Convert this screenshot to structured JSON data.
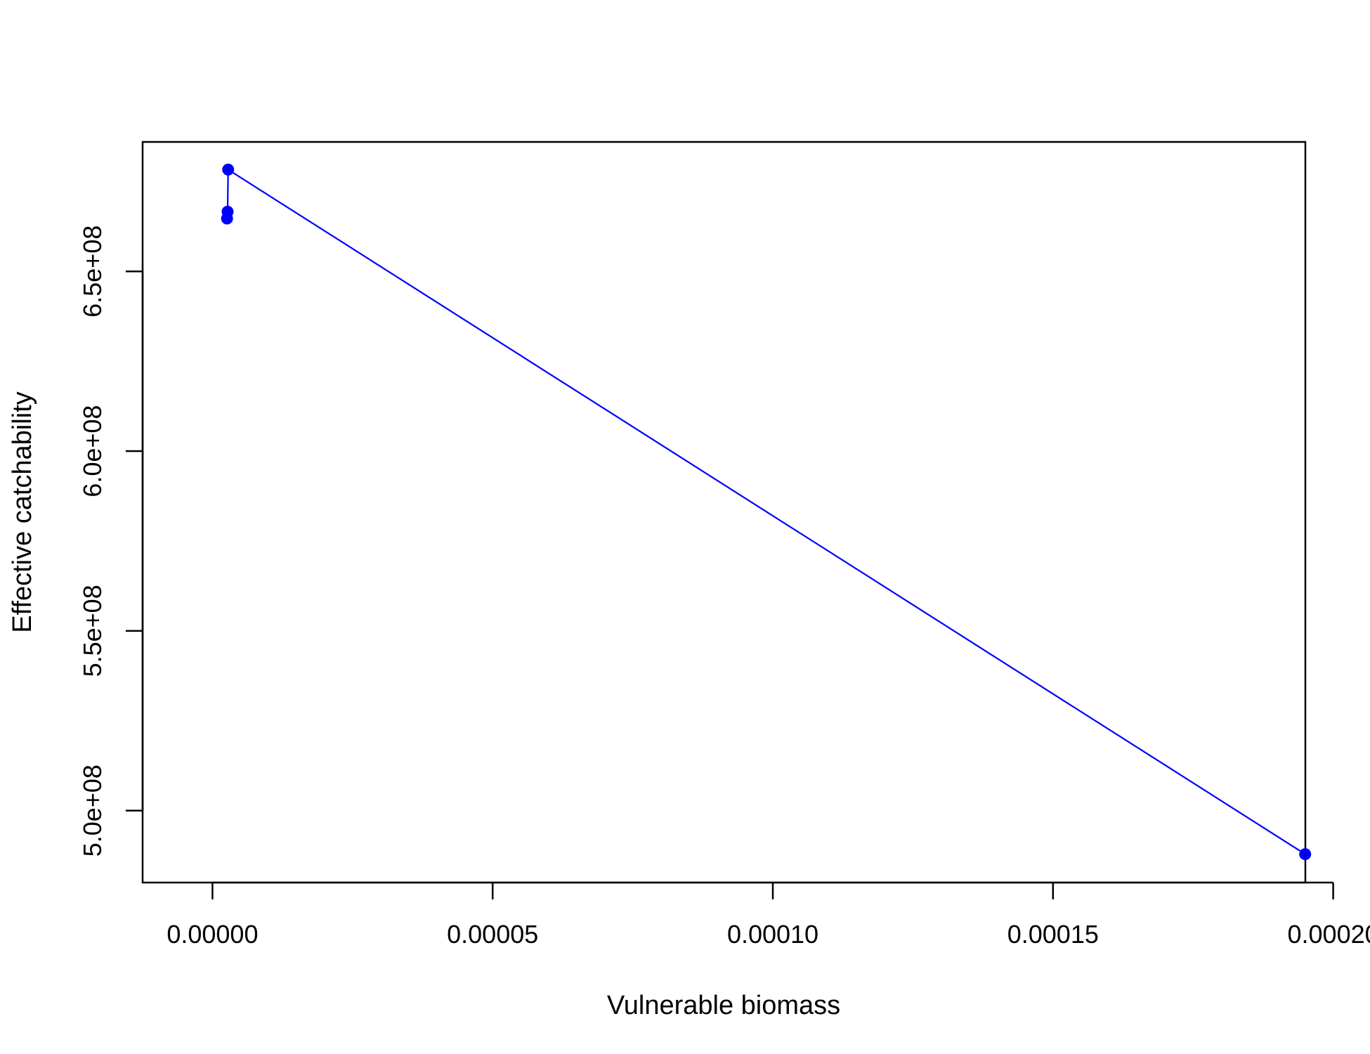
{
  "chart_data": {
    "type": "line",
    "title": "",
    "xlabel": "Vulnerable biomass",
    "ylabel": "Effective catchability",
    "xlim": [
      -7.5e-06,
      0.0002
    ],
    "ylim": [
      480000000,
      686000000
    ],
    "x_ticks": [
      0.0,
      5e-05,
      0.0001,
      0.00015,
      0.0002
    ],
    "x_tick_labels": [
      "0.00000",
      "0.00005",
      "0.00010",
      "0.00015",
      "0.00020"
    ],
    "y_ticks": [
      500000000,
      550000000,
      600000000,
      650000000
    ],
    "y_tick_labels": [
      "5.0e+08",
      "5.5e+08",
      "6.0e+08",
      "6.5e+08"
    ],
    "grid": false,
    "legend": "none",
    "series": [
      {
        "color": "#0000ff",
        "marker": "filled-circle",
        "x": [
          2.6e-06,
          2.7e-06,
          2.8e-06,
          0.000195
        ],
        "y": [
          664700000,
          666600000,
          678300000,
          487900000
        ]
      }
    ]
  }
}
